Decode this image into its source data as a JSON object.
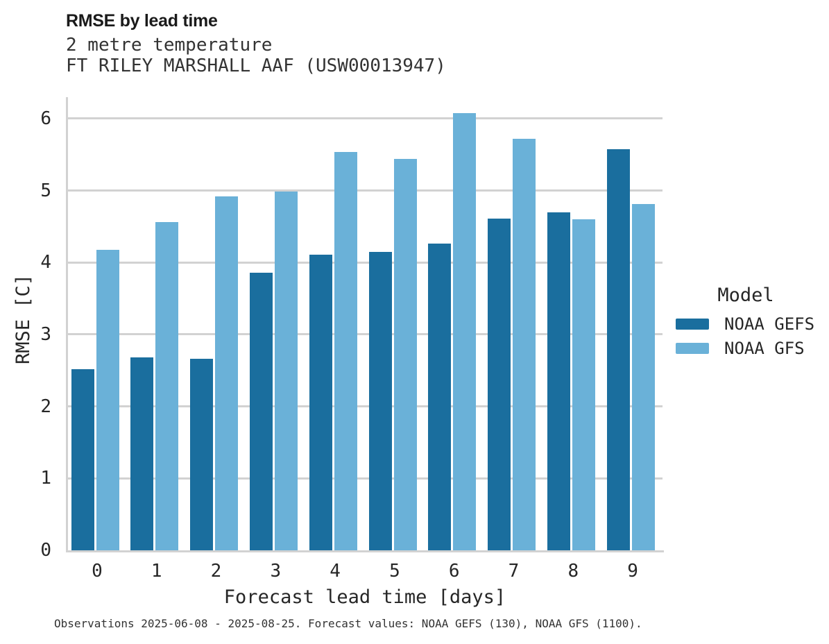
{
  "header": {
    "title": "RMSE by lead time",
    "subtitle_line1": "2 metre temperature",
    "subtitle_line2": "FT RILEY MARSHALL AAF (USW00013947)"
  },
  "legend": {
    "title": "Model"
  },
  "footer": {
    "caption": "Observations 2025-06-08 - 2025-08-25. Forecast values: NOAA GEFS (130), NOAA GFS (1100)."
  },
  "colors": {
    "gefs_dark_blue": "#1a6e9e",
    "gfs_light_blue": "#6ab1d8",
    "gridline_gray": "#d2d2d2",
    "text_dark": "#262626"
  },
  "chart_data": {
    "type": "bar",
    "title": "RMSE by lead time",
    "subtitle": "2 metre temperature",
    "station": "FT RILEY MARSHALL AAF (USW00013947)",
    "categories": [
      "0",
      "1",
      "2",
      "3",
      "4",
      "5",
      "6",
      "7",
      "8",
      "9"
    ],
    "series": [
      {
        "name": "NOAA GEFS",
        "color": "#1a6e9e",
        "values": [
          2.52,
          2.68,
          2.66,
          3.86,
          4.11,
          4.15,
          4.26,
          4.61,
          4.7,
          5.57
        ]
      },
      {
        "name": "NOAA GFS",
        "color": "#6ab1d8",
        "values": [
          4.18,
          4.56,
          4.92,
          4.99,
          5.54,
          5.44,
          6.08,
          5.72,
          4.6,
          4.81
        ]
      }
    ],
    "xlabel": "Forecast lead time [days]",
    "ylabel": "RMSE [C]",
    "ylim": [
      0,
      6.3
    ],
    "yticks": [
      0,
      1,
      2,
      3,
      4,
      5,
      6
    ],
    "grid": "horizontal",
    "legend_title": "Model",
    "legend_position": "center-right"
  }
}
